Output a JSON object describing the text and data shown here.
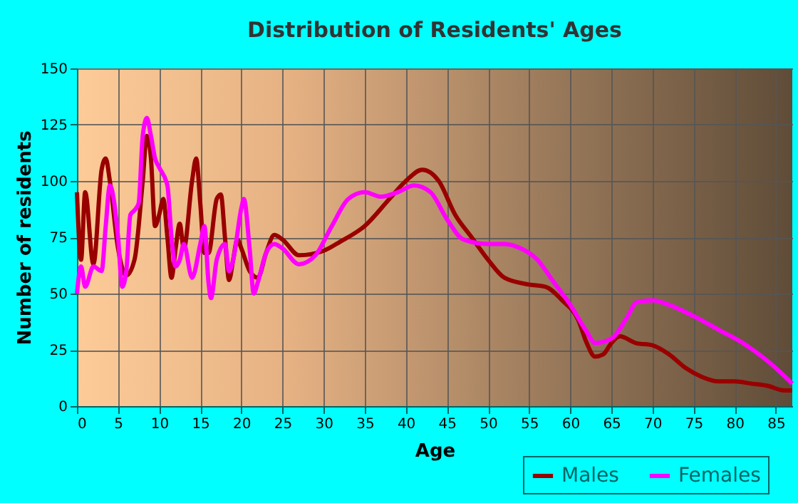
{
  "chart_data": {
    "type": "line",
    "title": "Distribution of Residents' Ages",
    "xlabel": "Age",
    "ylabel": "Number of residents",
    "xlim": [
      0,
      87
    ],
    "xticks": [
      0,
      5,
      10,
      15,
      20,
      25,
      30,
      35,
      40,
      45,
      50,
      55,
      60,
      65,
      70,
      75,
      80,
      85
    ],
    "ylim": [
      0,
      150
    ],
    "yticks": [
      0,
      25,
      50,
      75,
      100,
      125,
      150
    ],
    "grid": true,
    "legend": "bottom",
    "line_style": "solid",
    "marker": "none",
    "series": [
      {
        "name": "Males",
        "color": "#990000",
        "x": [
          0,
          0.5,
          1,
          2,
          3,
          3.5,
          4,
          5,
          6,
          7,
          8,
          8.5,
          9,
          9.5,
          10,
          10.5,
          11,
          11.5,
          12,
          12.5,
          13,
          14,
          14.5,
          15,
          15.5,
          16,
          17,
          17.5,
          18,
          18.5,
          19,
          19.5,
          20,
          21,
          22,
          23,
          24,
          25,
          27,
          30,
          32,
          35,
          38,
          40,
          42,
          44,
          46,
          48,
          50,
          52,
          55,
          57,
          59,
          61,
          62,
          63,
          64,
          65,
          66,
          68,
          70,
          72,
          74,
          76,
          78,
          80,
          82,
          84,
          86,
          87
        ],
        "values": [
          95,
          65,
          95,
          63,
          105,
          110,
          100,
          70,
          58,
          65,
          100,
          120,
          110,
          80,
          85,
          92,
          75,
          57,
          70,
          81,
          70,
          100,
          110,
          90,
          68,
          68,
          92,
          94,
          75,
          56,
          65,
          74,
          70,
          60,
          57,
          68,
          76,
          74,
          67,
          69,
          73,
          80,
          92,
          100,
          105,
          100,
          85,
          75,
          65,
          57,
          54,
          53,
          47,
          38,
          28,
          22,
          23,
          28,
          31,
          28,
          27,
          23,
          17,
          13,
          11,
          11,
          10,
          9,
          7,
          7
        ]
      },
      {
        "name": "Females",
        "color": "#ff00ff",
        "x": [
          0,
          0.5,
          1,
          2,
          3,
          3.5,
          4,
          5,
          5.5,
          6,
          6.5,
          7,
          7.5,
          8,
          8.5,
          9,
          9.5,
          10,
          11,
          11.5,
          12,
          12.5,
          13,
          14,
          15,
          15.5,
          16,
          16.3,
          17,
          18,
          18.5,
          19,
          20,
          20.3,
          21,
          21.5,
          22,
          23,
          24,
          25,
          27,
          29,
          31,
          33,
          35,
          37,
          39,
          41,
          43,
          45,
          47,
          50,
          52,
          54,
          56,
          58,
          60,
          62,
          63,
          65,
          67,
          68,
          70,
          72,
          75,
          78,
          81,
          84,
          87
        ],
        "values": [
          50,
          62,
          53,
          62,
          60,
          80,
          98,
          75,
          53,
          60,
          85,
          87,
          90,
          120,
          128,
          120,
          110,
          106,
          98,
          75,
          62,
          65,
          72,
          57,
          72,
          80,
          55,
          48,
          65,
          72,
          60,
          65,
          88,
          92,
          70,
          50,
          55,
          68,
          72,
          70,
          63,
          67,
          80,
          92,
          95,
          93,
          95,
          98,
          95,
          83,
          74,
          72,
          72,
          70,
          65,
          55,
          45,
          33,
          28,
          30,
          40,
          46,
          47,
          45,
          40,
          34,
          28,
          20,
          10
        ]
      }
    ]
  }
}
